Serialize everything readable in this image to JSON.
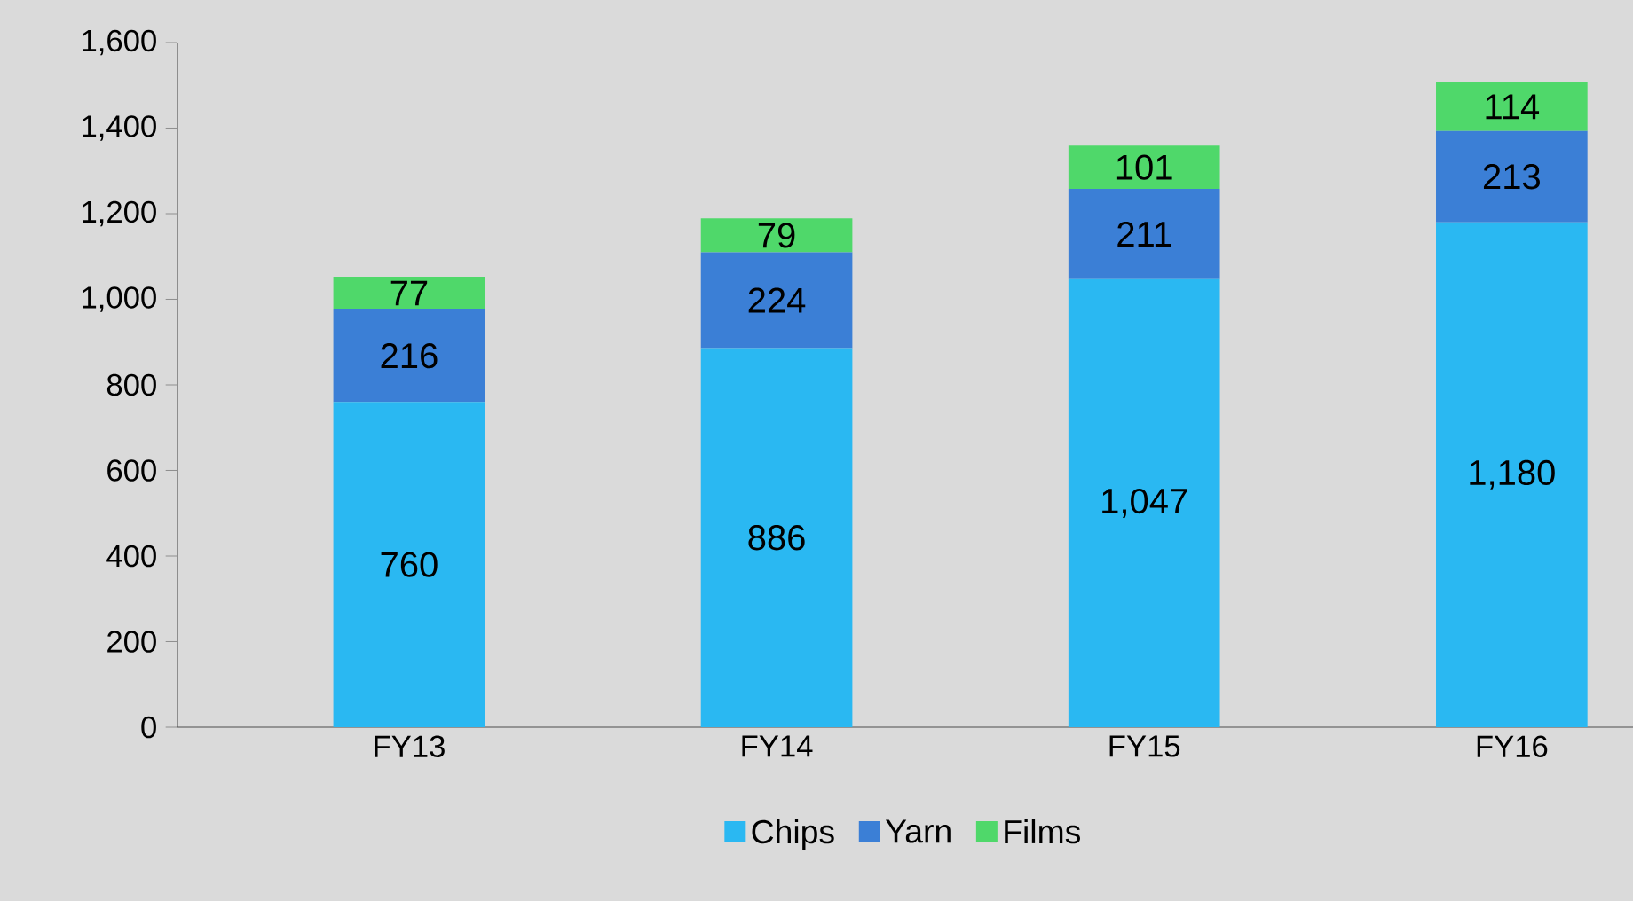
{
  "chart_data": {
    "type": "bar",
    "stacked": true,
    "categories": [
      "FY13",
      "FY14",
      "FY15",
      "FY16"
    ],
    "series": [
      {
        "name": "Chips",
        "color": "#2ab8f2",
        "values": [
          760,
          886,
          1047,
          1180
        ],
        "value_labels": [
          "760",
          "886",
          "1,047",
          "1,180"
        ]
      },
      {
        "name": "Yarn",
        "color": "#3b7fd6",
        "values": [
          216,
          224,
          211,
          213
        ],
        "value_labels": [
          "216",
          "224",
          "211",
          "213"
        ]
      },
      {
        "name": "Films",
        "color": "#4fd86a",
        "values": [
          77,
          79,
          101,
          114
        ],
        "value_labels": [
          "77",
          "79",
          "101",
          "114"
        ]
      }
    ],
    "ylim": [
      0,
      1600
    ],
    "yticks": [
      0,
      200,
      400,
      600,
      800,
      {
        "value": 1000,
        "label": "1,000"
      },
      {
        "value": 1200,
        "label": "1,200"
      },
      {
        "value": 1400,
        "label": "1,400"
      },
      {
        "value": 1600,
        "label": "1,600"
      }
    ],
    "grid": false,
    "legend": "bottom"
  }
}
